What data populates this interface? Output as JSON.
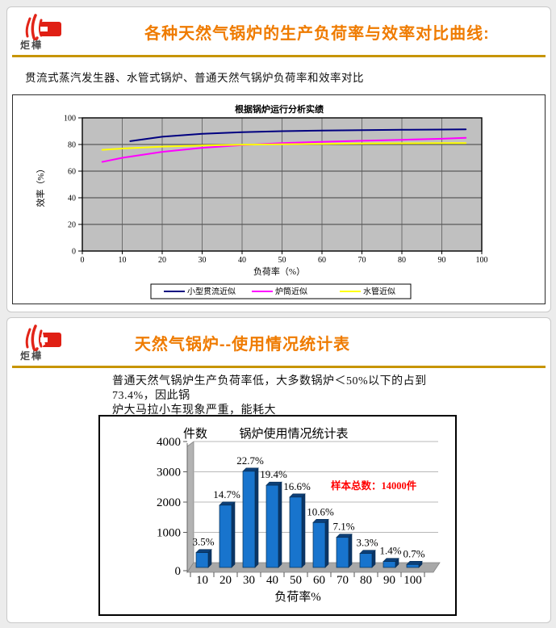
{
  "logo": {
    "text": "炬樺",
    "flame_color": "#e22418",
    "block_color": "#e01f14"
  },
  "slide1": {
    "title": "各种天然气锅炉的生产负荷率与效率对比曲线:",
    "subtitle": "贯流式蒸汽发生器、水管式锅炉、普通天然气锅炉负荷率和效率对比",
    "rule_color": "#c79500"
  },
  "slide2": {
    "title": "天然气锅炉--使用情况统计表",
    "body_line1": "普通天然气锅炉生产负荷率低，大多数锅炉＜50%以下的占到73.4%，因此锅",
    "body_line2": "炉大马拉小车现象严重，能耗大"
  },
  "chart_data": [
    {
      "type": "line",
      "title": "根据锅炉运行分析实绩",
      "xlabel": "负荷率（%）",
      "ylabel": "效率（%）",
      "xlim": [
        0,
        100
      ],
      "ylim": [
        0,
        100
      ],
      "xticks": [
        0,
        10,
        20,
        30,
        40,
        50,
        60,
        70,
        80,
        90,
        100
      ],
      "yticks": [
        0,
        20,
        40,
        60,
        80,
        100
      ],
      "plot_bg": "#c0c0c0",
      "grid": true,
      "legend_position": "bottom",
      "series": [
        {
          "name": "小型贯流近似",
          "color": "#000080",
          "x": [
            12,
            20,
            30,
            40,
            50,
            60,
            70,
            80,
            90,
            96
          ],
          "y": [
            82.5,
            85.8,
            88,
            89.2,
            90,
            90.4,
            90.7,
            91,
            91.2,
            91.4
          ]
        },
        {
          "name": "炉筒近似",
          "color": "#ff00ff",
          "x": [
            5,
            10,
            20,
            30,
            40,
            50,
            60,
            70,
            80,
            90,
            96
          ],
          "y": [
            67,
            70,
            74.5,
            77.5,
            79.6,
            81,
            82,
            82.8,
            83.5,
            84.3,
            85
          ]
        },
        {
          "name": "水管近似",
          "color": "#ffff00",
          "x": [
            5,
            10,
            20,
            30,
            40,
            50,
            60,
            70,
            80,
            90,
            96
          ],
          "y": [
            76,
            77,
            78.4,
            79.3,
            79.8,
            80.2,
            80.5,
            80.7,
            80.9,
            81,
            81
          ]
        }
      ]
    },
    {
      "type": "bar",
      "title": "锅炉使用情况统计表",
      "ylabel": "件数",
      "xlabel": "负荷率%",
      "categories": [
        "10",
        "20",
        "30",
        "40",
        "50",
        "60",
        "70",
        "80",
        "90",
        "100"
      ],
      "values": [
        490,
        2058,
        3178,
        2716,
        2324,
        1484,
        994,
        462,
        196,
        98
      ],
      "bar_labels": [
        "3.5%",
        "14.7%",
        "22.7%",
        "19.4%",
        "16.6%",
        "10.6%",
        "7.1%",
        "3.3%",
        "1.4%",
        "0.7%"
      ],
      "annotation": "样本总数：14000件",
      "annotation_color": "#ff0000",
      "bar_color_front": "#1874cd",
      "bar_color_side": "#0b3566",
      "bar_color_top": "#0d3f77",
      "ylim": [
        0,
        4000
      ],
      "yticks": [
        0,
        1000,
        2000,
        3000,
        4000
      ],
      "grid": true
    }
  ]
}
